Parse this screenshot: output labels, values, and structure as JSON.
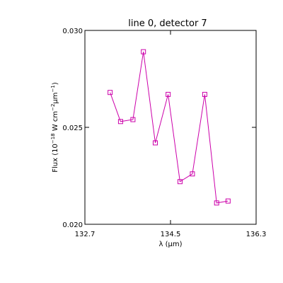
{
  "chart_data": {
    "type": "line",
    "title": "line 0, detector 7",
    "xlabel": "λ (μm)",
    "ylabel": {
      "prefix": "Flux (10",
      "exp1": "−18",
      "mid": " W cm",
      "exp2": "−2",
      "mu": "μm",
      "exp3": "−1",
      "suffix": ")"
    },
    "xlim": [
      132.7,
      136.3
    ],
    "ylim": [
      0.02,
      0.03
    ],
    "x_ticks": [
      {
        "value": 132.7,
        "label": "132.7"
      },
      {
        "value": 134.5,
        "label": "134.5"
      },
      {
        "value": 136.3,
        "label": "136.3"
      }
    ],
    "y_ticks": [
      {
        "value": 0.02,
        "label": "0.020"
      },
      {
        "value": 0.025,
        "label": "0.025"
      },
      {
        "value": 0.03,
        "label": "0.030"
      }
    ],
    "grid": false,
    "series": [
      {
        "color": "#cc00aa",
        "marker": "square",
        "x": [
          133.23,
          133.45,
          133.71,
          133.93,
          134.18,
          134.45,
          134.7,
          134.96,
          135.22,
          135.47,
          135.71
        ],
        "y": [
          0.0268,
          0.0253,
          0.0254,
          0.0289,
          0.0242,
          0.0267,
          0.0222,
          0.0226,
          0.0267,
          0.0211,
          0.0212
        ]
      }
    ]
  }
}
